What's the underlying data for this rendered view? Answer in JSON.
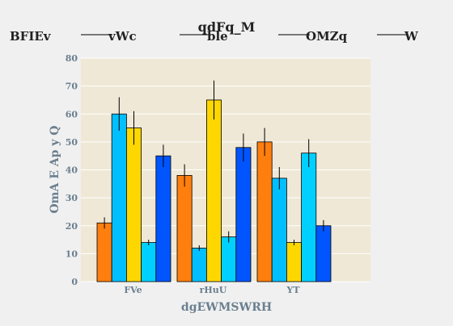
{
  "chart_data": {
    "type": "bar",
    "title": "qdFq_M",
    "xlabel": "dgEWMSWRH",
    "ylabel": "OmA E Ap y Q",
    "categories": [
      "FVe",
      "rHuU",
      "YT"
    ],
    "ylim": [
      0,
      80
    ],
    "yticks": [
      0,
      10,
      20,
      30,
      40,
      50,
      60,
      70,
      80
    ],
    "grid": true,
    "legend_position": "top",
    "series": [
      {
        "name": "BFIEv",
        "color": "#ff7f0e",
        "values": [
          21,
          38,
          50
        ],
        "errors": [
          2,
          4,
          5
        ]
      },
      {
        "name": "vWc",
        "color": "#00bfff",
        "values": [
          60,
          12,
          37
        ],
        "errors": [
          6,
          1,
          4
        ]
      },
      {
        "name": "ble",
        "color": "#ffd700",
        "values": [
          55,
          65,
          14
        ],
        "errors": [
          6,
          7,
          1
        ]
      },
      {
        "name": "OMZq",
        "color": "#00d0ff",
        "values": [
          14,
          16,
          46
        ],
        "errors": [
          1,
          2,
          5
        ]
      },
      {
        "name": "W",
        "color": "#0055ff",
        "values": [
          45,
          48,
          20
        ],
        "errors": [
          4,
          5,
          2
        ]
      }
    ]
  }
}
